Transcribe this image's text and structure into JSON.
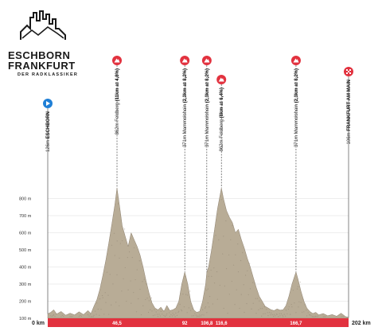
{
  "logo": {
    "line1": "ESCHBORN",
    "line2": "FRANKFURT",
    "tagline": "DER RADKLASSIKER"
  },
  "colors": {
    "terrain": "#b8ac96",
    "terrain_dark": "#8d8170",
    "baseline_bar": "#e2323f",
    "start_marker": "#1f7fd6",
    "climb_marker": "#e2323f",
    "grid": "#dddddd"
  },
  "chart_data": {
    "type": "area",
    "title": "",
    "xlabel": "",
    "ylabel": "",
    "xlim": [
      0,
      202
    ],
    "ylim": [
      100,
      900
    ],
    "x_unit": "km",
    "y_unit": "m",
    "y_ticks": [
      100,
      200,
      300,
      400,
      500,
      600,
      700,
      800
    ],
    "y_tick_labels": [
      "100 m",
      "200 m",
      "300 m",
      "400 m",
      "500 m",
      "600 m",
      "700 m",
      "800 m"
    ],
    "x_tick_labels": [
      {
        "km": 0,
        "label": "0 km"
      },
      {
        "km": 46.5,
        "label": "46,5"
      },
      {
        "km": 92,
        "label": "92"
      },
      {
        "km": 106.8,
        "label": "106,8"
      },
      {
        "km": 116.6,
        "label": "116,6"
      },
      {
        "km": 166.7,
        "label": "166,7"
      },
      {
        "km": 202,
        "label": "202 km"
      }
    ],
    "profile": [
      [
        0,
        126
      ],
      [
        2,
        135
      ],
      [
        4,
        150
      ],
      [
        6,
        125
      ],
      [
        9,
        140
      ],
      [
        12,
        118
      ],
      [
        15,
        130
      ],
      [
        18,
        120
      ],
      [
        21,
        138
      ],
      [
        24,
        122
      ],
      [
        27,
        145
      ],
      [
        29,
        128
      ],
      [
        31,
        170
      ],
      [
        33,
        210
      ],
      [
        35,
        270
      ],
      [
        37,
        350
      ],
      [
        39,
        440
      ],
      [
        41,
        540
      ],
      [
        43,
        650
      ],
      [
        45,
        760
      ],
      [
        46.5,
        862
      ],
      [
        48,
        770
      ],
      [
        50,
        640
      ],
      [
        52,
        580
      ],
      [
        54,
        520
      ],
      [
        56,
        600
      ],
      [
        58,
        560
      ],
      [
        60,
        520
      ],
      [
        62,
        470
      ],
      [
        64,
        400
      ],
      [
        66,
        320
      ],
      [
        68,
        250
      ],
      [
        70,
        190
      ],
      [
        72,
        160
      ],
      [
        74,
        150
      ],
      [
        76,
        165
      ],
      [
        78,
        140
      ],
      [
        80,
        175
      ],
      [
        82,
        145
      ],
      [
        84,
        150
      ],
      [
        86,
        160
      ],
      [
        88,
        200
      ],
      [
        90,
        300
      ],
      [
        92,
        371
      ],
      [
        94,
        300
      ],
      [
        96,
        200
      ],
      [
        98,
        150
      ],
      [
        100,
        135
      ],
      [
        102,
        140
      ],
      [
        104,
        200
      ],
      [
        106,
        300
      ],
      [
        106.8,
        371
      ],
      [
        108,
        400
      ],
      [
        110,
        500
      ],
      [
        112,
        620
      ],
      [
        114,
        740
      ],
      [
        116.6,
        862
      ],
      [
        118,
        800
      ],
      [
        120,
        730
      ],
      [
        122,
        690
      ],
      [
        124,
        660
      ],
      [
        126,
        600
      ],
      [
        128,
        620
      ],
      [
        130,
        560
      ],
      [
        132,
        510
      ],
      [
        134,
        450
      ],
      [
        136,
        400
      ],
      [
        138,
        340
      ],
      [
        140,
        280
      ],
      [
        142,
        230
      ],
      [
        144,
        200
      ],
      [
        146,
        170
      ],
      [
        148,
        160
      ],
      [
        150,
        150
      ],
      [
        152,
        145
      ],
      [
        154,
        155
      ],
      [
        156,
        148
      ],
      [
        158,
        150
      ],
      [
        160,
        175
      ],
      [
        162,
        230
      ],
      [
        164,
        300
      ],
      [
        166.7,
        371
      ],
      [
        168,
        330
      ],
      [
        170,
        260
      ],
      [
        172,
        200
      ],
      [
        174,
        160
      ],
      [
        176,
        140
      ],
      [
        178,
        128
      ],
      [
        180,
        135
      ],
      [
        182,
        120
      ],
      [
        185,
        128
      ],
      [
        188,
        115
      ],
      [
        191,
        122
      ],
      [
        194,
        112
      ],
      [
        197,
        130
      ],
      [
        200,
        110
      ],
      [
        202,
        106
      ]
    ],
    "waypoints": [
      {
        "km": 0,
        "label": "126m ESCHBORN",
        "bold": "ESCHBORN",
        "rest": "126m ",
        "marker": "start"
      },
      {
        "km": 46.5,
        "label": "862m Feldberg (11km at 4,8%)",
        "rest": "862m Feldberg ",
        "bold": "(11km at 4,8%)",
        "marker": "climb"
      },
      {
        "km": 92,
        "label": "371m Mammolshain (2,3km at 8,2%)",
        "rest": "371m Mammolshain ",
        "bold": "(2,3km at 8,2%)",
        "marker": "climb"
      },
      {
        "km": 106.8,
        "label": "371m Mammolshain (2,3km at 8,2%)",
        "rest": "371m Mammolshain ",
        "bold": "(2,3km at 8,2%)",
        "marker": "climb"
      },
      {
        "km": 116.6,
        "label": "862m Feldberg (8km at 6,4%)",
        "rest": "862m Feldberg ",
        "bold": "(8km at 6,4%)",
        "marker": "climb"
      },
      {
        "km": 166.7,
        "label": "371m Mammolshain (2,3km at 8,2%)",
        "rest": "371m Mammolshain ",
        "bold": "(2,3km at 8,2%)",
        "marker": "climb"
      },
      {
        "km": 202,
        "label": "106m FRANKFURT AM MAIN",
        "rest": "106m ",
        "bold": "FRANKFURT AM MAIN",
        "marker": "finish"
      }
    ],
    "grid": true,
    "legend": "none"
  }
}
